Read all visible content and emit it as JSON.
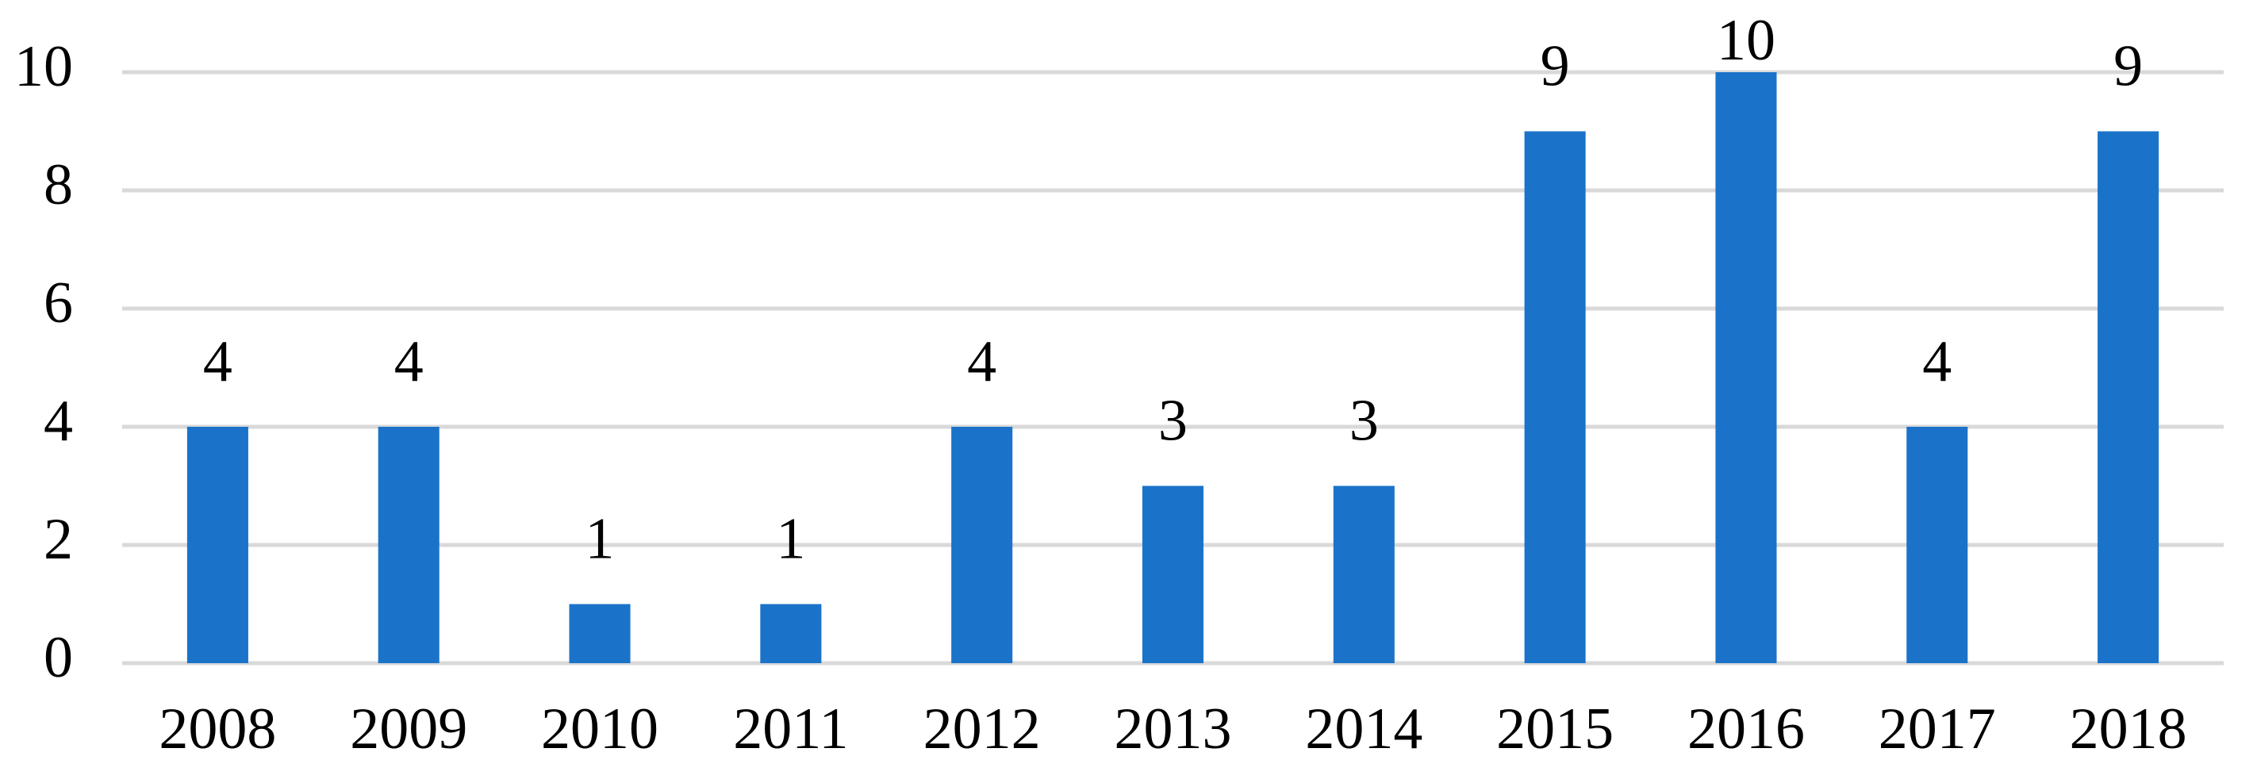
{
  "chart_data": {
    "type": "bar",
    "categories": [
      "2008",
      "2009",
      "2010",
      "2011",
      "2012",
      "2013",
      "2014",
      "2015",
      "2016",
      "2017",
      "2018"
    ],
    "values": [
      4,
      4,
      1,
      1,
      4,
      3,
      3,
      9,
      10,
      4,
      9
    ],
    "color": "#1b73c9",
    "ylim": [
      0,
      10
    ],
    "yticks": [
      0,
      2,
      4,
      6,
      8,
      10
    ],
    "grid": true,
    "data_labels": true
  }
}
